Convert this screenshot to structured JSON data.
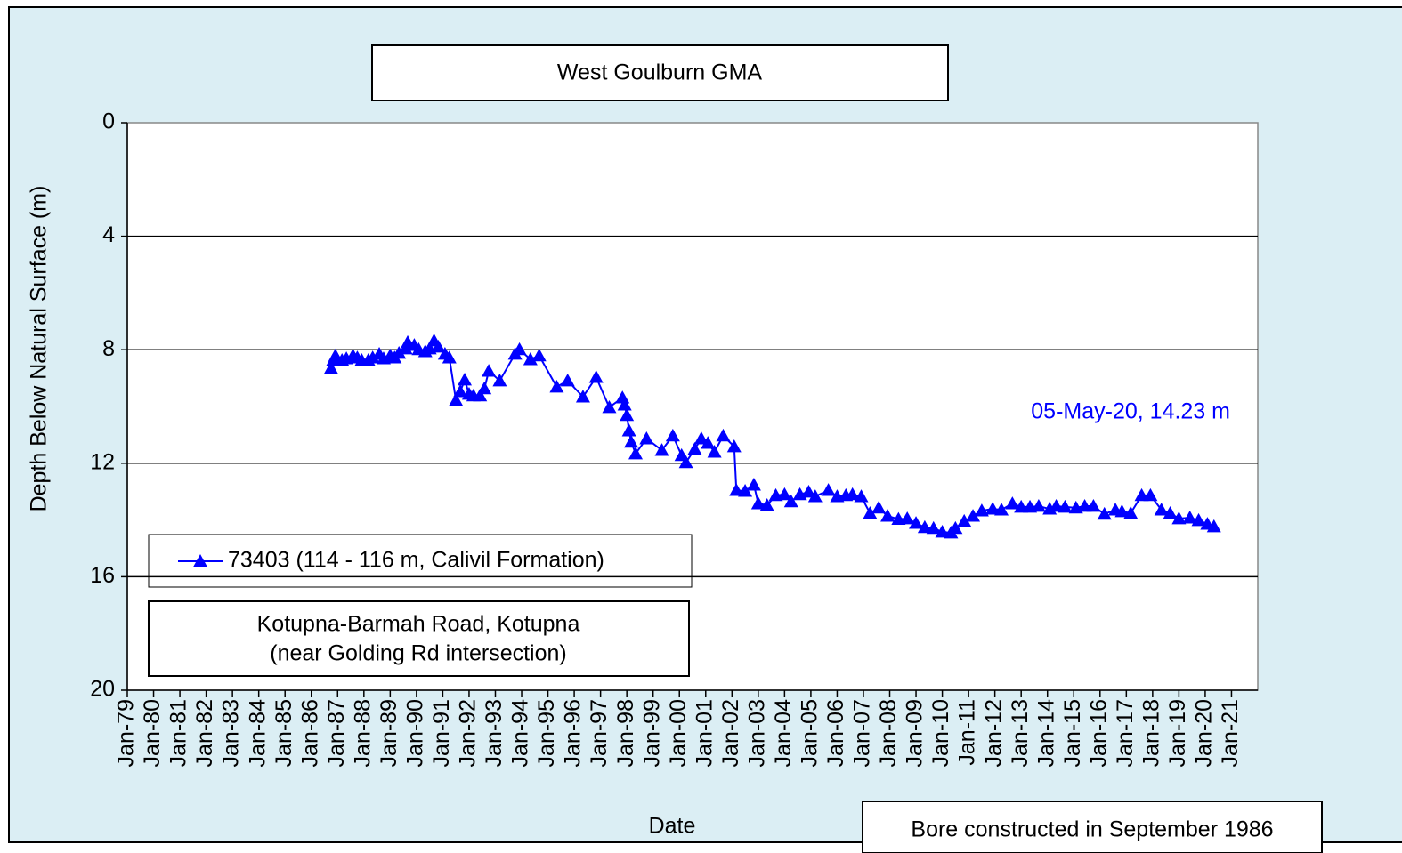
{
  "chart_data": {
    "type": "line",
    "title": "West Goulburn  GMA",
    "ylabel": "Depth Below Natural Surface (m)",
    "xlabel": "Date",
    "annotation": "05-May-20, 14.23 m",
    "location_lines": [
      "Kotupna-Barmah  Road, Kotupna",
      "(near Golding  Rd intersection)"
    ],
    "note": "Bore constructed in September  1986",
    "ylim": [
      0,
      20
    ],
    "y_inverted": true,
    "yticks": [
      0,
      4,
      8,
      12,
      16,
      20
    ],
    "grid": true,
    "xlim": [
      "1979-01",
      "2021-12"
    ],
    "xticks": [
      {
        "value": "1979-01",
        "label": "Jan-79"
      },
      {
        "value": "1980-01",
        "label": "Jan-80"
      },
      {
        "value": "1981-01",
        "label": "Jan-81"
      },
      {
        "value": "1982-01",
        "label": "Jan-82"
      },
      {
        "value": "1983-01",
        "label": "Jan-83"
      },
      {
        "value": "1984-01",
        "label": "Jan-84"
      },
      {
        "value": "1985-01",
        "label": "Jan-85"
      },
      {
        "value": "1986-01",
        "label": "Jan-86"
      },
      {
        "value": "1987-01",
        "label": "Jan-87"
      },
      {
        "value": "1988-01",
        "label": "Jan-88"
      },
      {
        "value": "1989-01",
        "label": "Jan-89"
      },
      {
        "value": "1990-01",
        "label": "Jan-90"
      },
      {
        "value": "1991-01",
        "label": "Jan-91"
      },
      {
        "value": "1992-01",
        "label": "Jan-92"
      },
      {
        "value": "1993-01",
        "label": "Jan-93"
      },
      {
        "value": "1994-01",
        "label": "Jan-94"
      },
      {
        "value": "1995-01",
        "label": "Jan-95"
      },
      {
        "value": "1996-01",
        "label": "Jan-96"
      },
      {
        "value": "1997-01",
        "label": "Jan-97"
      },
      {
        "value": "1998-01",
        "label": "Jan-98"
      },
      {
        "value": "1999-01",
        "label": "Jan-99"
      },
      {
        "value": "2000-01",
        "label": "Jan-00"
      },
      {
        "value": "2001-01",
        "label": "Jan-01"
      },
      {
        "value": "2002-01",
        "label": "Jan-02"
      },
      {
        "value": "2003-01",
        "label": "Jan-03"
      },
      {
        "value": "2004-01",
        "label": "Jan-04"
      },
      {
        "value": "2005-01",
        "label": "Jan-05"
      },
      {
        "value": "2006-01",
        "label": "Jan-06"
      },
      {
        "value": "2007-01",
        "label": "Jan-07"
      },
      {
        "value": "2008-01",
        "label": "Jan-08"
      },
      {
        "value": "2009-01",
        "label": "Jan-09"
      },
      {
        "value": "2010-01",
        "label": "Jan-10"
      },
      {
        "value": "2011-01",
        "label": "Jan-11"
      },
      {
        "value": "2012-01",
        "label": "Jan-12"
      },
      {
        "value": "2013-01",
        "label": "Jan-13"
      },
      {
        "value": "2014-01",
        "label": "Jan-14"
      },
      {
        "value": "2015-01",
        "label": "Jan-15"
      },
      {
        "value": "2016-01",
        "label": "Jan-16"
      },
      {
        "value": "2017-01",
        "label": "Jan-17"
      },
      {
        "value": "2018-01",
        "label": "Jan-18"
      },
      {
        "value": "2019-01",
        "label": "Jan-19"
      },
      {
        "value": "2020-01",
        "label": "Jan-20"
      },
      {
        "value": "2021-01",
        "label": "Jan-21"
      }
    ],
    "x": [
      "1986-10",
      "1986-11",
      "1986-12",
      "1987-03",
      "1987-05",
      "1987-08",
      "1987-10",
      "1987-12",
      "1988-03",
      "1988-05",
      "1988-08",
      "1988-10",
      "1989-01",
      "1989-03",
      "1989-05",
      "1989-08",
      "1989-09",
      "1989-12",
      "1990-02",
      "1990-05",
      "1990-07",
      "1990-09",
      "1990-11",
      "1991-02",
      "1991-04",
      "1991-07",
      "1991-09",
      "1991-11",
      "1992-01",
      "1992-03",
      "1992-06",
      "1992-08",
      "1992-10",
      "1993-03",
      "1993-10",
      "1993-12",
      "1994-05",
      "1994-09",
      "1995-05",
      "1995-10",
      "1996-05",
      "1996-11",
      "1997-05",
      "1997-11",
      "1997-12",
      "1998-01",
      "1998-02",
      "1998-03",
      "1998-05",
      "1998-10",
      "1999-05",
      "1999-10",
      "2000-02",
      "2000-04",
      "2000-08",
      "2000-11",
      "2001-02",
      "2001-05",
      "2001-09",
      "2002-02",
      "2002-03",
      "2002-07",
      "2002-11",
      "2003-01",
      "2003-05",
      "2003-09",
      "2004-01",
      "2004-04",
      "2004-08",
      "2004-12",
      "2005-03",
      "2005-09",
      "2006-01",
      "2006-05",
      "2006-08",
      "2006-12",
      "2007-04",
      "2007-08",
      "2007-12",
      "2008-05",
      "2008-09",
      "2009-01",
      "2009-05",
      "2009-09",
      "2010-01",
      "2010-05",
      "2010-07",
      "2010-11",
      "2011-03",
      "2011-07",
      "2011-12",
      "2012-04",
      "2012-09",
      "2013-01",
      "2013-05",
      "2013-09",
      "2014-02",
      "2014-05",
      "2014-09",
      "2015-02",
      "2015-06",
      "2015-10",
      "2016-03",
      "2016-08",
      "2016-11",
      "2017-03",
      "2017-08",
      "2017-12",
      "2018-05",
      "2018-09",
      "2019-01",
      "2019-06",
      "2019-10",
      "2020-02",
      "2020-05"
    ],
    "series": [
      {
        "name": "73403 (114 - 116 m, Calivil Formation)",
        "color": "#0000ff",
        "marker": "triangle",
        "values": [
          8.65,
          8.37,
          8.21,
          8.37,
          8.31,
          8.21,
          8.28,
          8.37,
          8.37,
          8.28,
          8.15,
          8.31,
          8.21,
          8.28,
          8.12,
          7.96,
          7.74,
          7.84,
          7.99,
          8.06,
          7.96,
          7.68,
          7.9,
          8.15,
          8.28,
          9.78,
          9.47,
          9.06,
          9.56,
          9.62,
          9.62,
          9.37,
          8.75,
          9.09,
          8.15,
          7.99,
          8.34,
          8.21,
          9.31,
          9.09,
          9.66,
          8.97,
          10.03,
          9.69,
          9.94,
          10.31,
          10.85,
          11.25,
          11.66,
          11.13,
          11.54,
          11.03,
          11.72,
          11.97,
          11.5,
          11.13,
          11.29,
          11.6,
          11.03,
          11.41,
          12.95,
          12.98,
          12.76,
          13.42,
          13.48,
          13.13,
          13.1,
          13.35,
          13.1,
          13.01,
          13.17,
          12.95,
          13.17,
          13.13,
          13.1,
          13.17,
          13.76,
          13.57,
          13.86,
          13.97,
          13.95,
          14.11,
          14.26,
          14.29,
          14.42,
          14.45,
          14.29,
          14.04,
          13.86,
          13.67,
          13.61,
          13.64,
          13.42,
          13.54,
          13.54,
          13.51,
          13.61,
          13.51,
          13.54,
          13.57,
          13.51,
          13.51,
          13.79,
          13.64,
          13.7,
          13.76,
          13.13,
          13.13,
          13.64,
          13.76,
          13.95,
          13.92,
          14.01,
          14.14,
          14.23
        ]
      }
    ]
  }
}
